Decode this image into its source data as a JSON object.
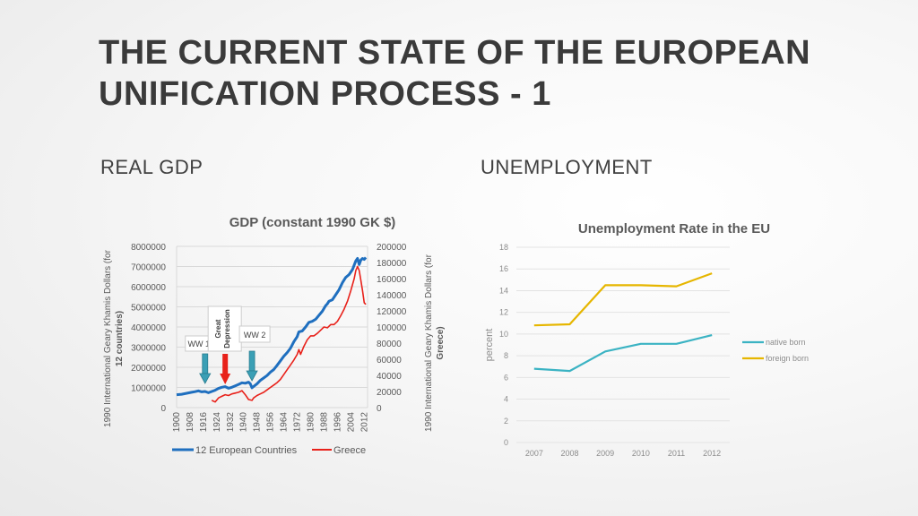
{
  "slide": {
    "title_line1": "THE CURRENT STATE OF THE EUROPEAN",
    "title_line2": "UNIFICATION PROCESS - 1",
    "left_heading": "REAL GDP",
    "right_heading": "UNEMPLOYMENT"
  },
  "chart_data": [
    {
      "type": "line",
      "title": "GDP (constant 1990 GK $)",
      "ylabel_left": "1990 International Geary Khamis Dollars (for",
      "ylabel_left_bold": "12 countries)",
      "ylabel_right": "1990 International Geary Khamis Dollars (for",
      "ylabel_right_bold": "Greece)",
      "ylim_left": [
        0,
        8000000
      ],
      "ylim_right": [
        0,
        200000
      ],
      "yticks_left": [
        "8000000",
        "7000000",
        "6000000",
        "5000000",
        "4000000",
        "3000000",
        "2000000",
        "1000000",
        "0"
      ],
      "yticks_right": [
        "200000",
        "180000",
        "160000",
        "140000",
        "120000",
        "100000",
        "80000",
        "60000",
        "40000",
        "20000",
        "0"
      ],
      "xticks": [
        "1900",
        "1908",
        "1916",
        "1924",
        "1932",
        "1940",
        "1948",
        "1956",
        "1964",
        "1972",
        "1980",
        "1988",
        "1996",
        "2004",
        "2012"
      ],
      "xlim": [
        1900,
        2014
      ],
      "grid": true,
      "legend_position": "bottom",
      "colors": {
        "europe": "#1f6fbf",
        "greece": "#e8211a",
        "teal_arrow": "#3a9fb5",
        "red_arrow": "#e8211a"
      },
      "series": [
        {
          "name": "12 European Countries",
          "axis": "left",
          "x": [
            1900,
            1903,
            1906,
            1909,
            1911,
            1913,
            1915,
            1917,
            1919,
            1921,
            1923,
            1925,
            1927,
            1929,
            1931,
            1933,
            1935,
            1937,
            1939,
            1941,
            1943,
            1944,
            1945,
            1946,
            1948,
            1950,
            1952,
            1954,
            1956,
            1958,
            1960,
            1962,
            1964,
            1966,
            1968,
            1970,
            1972,
            1973,
            1975,
            1977,
            1979,
            1981,
            1983,
            1985,
            1987,
            1989,
            1990,
            1991,
            1993,
            1995,
            1997,
            1999,
            2001,
            2003,
            2005,
            2007,
            2008,
            2009,
            2010,
            2011,
            2012,
            2013
          ],
          "y": [
            640000,
            660000,
            710000,
            760000,
            790000,
            830000,
            780000,
            800000,
            740000,
            800000,
            860000,
            950000,
            1010000,
            1040000,
            960000,
            1010000,
            1080000,
            1150000,
            1230000,
            1210000,
            1260000,
            1180000,
            980000,
            1050000,
            1180000,
            1350000,
            1470000,
            1590000,
            1760000,
            1890000,
            2100000,
            2320000,
            2550000,
            2730000,
            2950000,
            3270000,
            3520000,
            3760000,
            3800000,
            4000000,
            4230000,
            4280000,
            4380000,
            4580000,
            4780000,
            5060000,
            5150000,
            5280000,
            5350000,
            5600000,
            5850000,
            6200000,
            6460000,
            6600000,
            6850000,
            7280000,
            7400000,
            7100000,
            7320000,
            7400000,
            7350000,
            7450000
          ]
        },
        {
          "name": "Greece",
          "axis": "right",
          "x": [
            1921,
            1923,
            1925,
            1927,
            1929,
            1931,
            1933,
            1935,
            1937,
            1939,
            1941,
            1943,
            1945,
            1946,
            1948,
            1950,
            1952,
            1954,
            1956,
            1958,
            1960,
            1962,
            1964,
            1966,
            1968,
            1970,
            1972,
            1973,
            1974,
            1976,
            1978,
            1980,
            1982,
            1984,
            1986,
            1988,
            1990,
            1992,
            1994,
            1996,
            1998,
            2000,
            2002,
            2004,
            2006,
            2007,
            2008,
            2009,
            2010,
            2011,
            2012,
            2013
          ],
          "y": [
            9000,
            7000,
            12000,
            14000,
            16000,
            15000,
            17000,
            18000,
            19000,
            21000,
            16000,
            10000,
            9000,
            12000,
            15000,
            17000,
            19000,
            22000,
            25000,
            28000,
            31000,
            35000,
            41000,
            47000,
            53000,
            59000,
            66000,
            72000,
            66000,
            76000,
            84000,
            89000,
            89000,
            92000,
            96000,
            100000,
            99000,
            103000,
            103000,
            107000,
            114000,
            122000,
            132000,
            145000,
            160000,
            170000,
            175000,
            170000,
            158000,
            145000,
            130000,
            128000
          ]
        }
      ],
      "annotations": [
        {
          "label": "WW 1",
          "x": 1917
        },
        {
          "label": "Great\nDepression",
          "x": 1929
        },
        {
          "label": "WW 2",
          "x": 1945
        }
      ]
    },
    {
      "type": "line",
      "title": "Unemployment Rate in the EU",
      "ylabel": "percent",
      "categories": [
        "2007",
        "2008",
        "2009",
        "2010",
        "2011",
        "2012"
      ],
      "ylim": [
        0,
        18
      ],
      "yticks": [
        "18",
        "16",
        "14",
        "12",
        "10",
        "8",
        "6",
        "4",
        "2",
        "0"
      ],
      "grid": true,
      "legend_position": "right",
      "colors": {
        "native": "#3bb3c3",
        "foreign": "#e6b600"
      },
      "series": [
        {
          "name": "native born",
          "values": [
            6.8,
            6.6,
            8.4,
            9.1,
            9.1,
            9.9
          ]
        },
        {
          "name": "foreign born",
          "values": [
            10.8,
            10.9,
            14.5,
            14.5,
            14.4,
            15.6
          ]
        }
      ]
    }
  ]
}
